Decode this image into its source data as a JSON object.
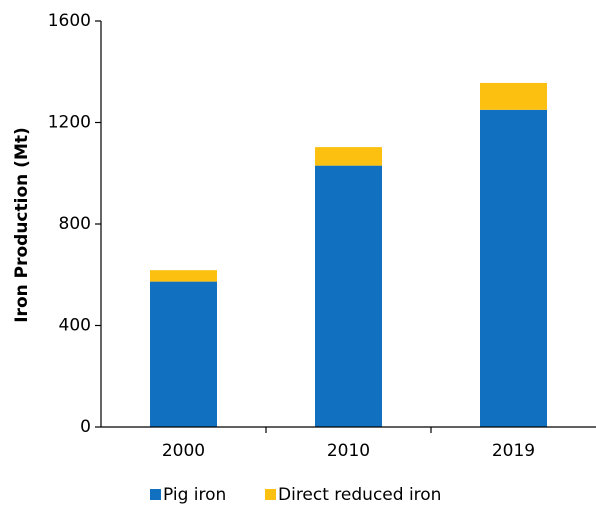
{
  "chart_data": {
    "type": "stacked_bar",
    "y_label": "Iron Production (Mt)",
    "categories": [
      "2000",
      "2010",
      "2019"
    ],
    "series": [
      {
        "name": "Pig iron",
        "color": "#1170c0",
        "values": [
          573,
          1030,
          1250
        ]
      },
      {
        "name": "Direct reduced iron",
        "color": "#fcc010",
        "values": [
          45,
          73,
          106
        ]
      }
    ],
    "ylim": [
      0,
      1600
    ],
    "yticks": [
      0,
      400,
      800,
      1200,
      1600
    ],
    "legend": "bottom"
  }
}
